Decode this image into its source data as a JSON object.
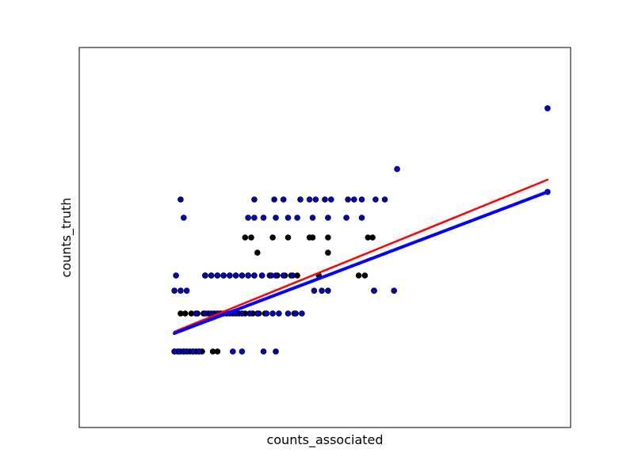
{
  "chart_data": {
    "type": "scatter",
    "title": "",
    "xlabel": "counts_associated",
    "ylabel": "counts_truth",
    "xlim": [
      -1,
      31
    ],
    "ylim": [
      0,
      25
    ],
    "xticks_visible": false,
    "yticks_visible": false,
    "grid": false,
    "colors": {
      "black_points": "#000000",
      "blue_points": "#0000cc",
      "red_line": "#ff0000",
      "blue_line": "#0000ff",
      "axes": "#000000",
      "background": "#ffffff"
    },
    "series": [
      {
        "marker": "black",
        "x": [
          5.2,
          5.4,
          5.6,
          5.8,
          6.0,
          6.2,
          6.4,
          6.6,
          6.8,
          7.0,
          7.7,
          8.0,
          5.6,
          5.9,
          6.3,
          6.7,
          7.1,
          7.4,
          7.8,
          8.2,
          8.6,
          9.0,
          9.4,
          9.8,
          10.3,
          10.7,
          11.1,
          13.0,
          7.2,
          7.6,
          8.0,
          8.4,
          8.8,
          9.2,
          9.6,
          10.0,
          10.4,
          10.9,
          11.4,
          11.9,
          12.4,
          12.8,
          13.2,
          14.6,
          17.6,
          18.2,
          17.2,
          9.8,
          10.2,
          11.6,
          12.6,
          14.0,
          14.2,
          15.2,
          10.6,
          15.2,
          17.8,
          18.1
        ],
        "y": [
          5,
          5,
          5,
          5,
          5,
          5,
          5,
          5,
          5,
          5,
          5,
          5,
          7.5,
          7.5,
          7.5,
          7.5,
          7.5,
          7.5,
          7.5,
          7.5,
          7.5,
          7.5,
          7.5,
          7.5,
          7.5,
          7.5,
          7.5,
          7.5,
          10,
          10,
          10,
          10,
          10,
          10,
          10,
          10,
          10,
          10,
          10,
          10,
          10,
          10,
          10,
          10,
          10,
          9,
          10,
          12.5,
          12.5,
          12.5,
          12.5,
          12.5,
          12.5,
          12.5,
          11.5,
          11.5,
          12.5,
          12.5
        ]
      },
      {
        "marker": "blue",
        "x": [
          5.2,
          5.5,
          5.8,
          6.0,
          6.4,
          6.8,
          5.3,
          6.6,
          7.2,
          7.6,
          8.0,
          8.4,
          8.8,
          9.2,
          9.6,
          10.1,
          10.6,
          11.2,
          11.6,
          12.0,
          12.6,
          13.1,
          13.5,
          5.2,
          5.6,
          6.0,
          7.2,
          7.6,
          8.0,
          8.4,
          8.8,
          9.2,
          9.6,
          10.0,
          10.4,
          10.9,
          11.5,
          11.8,
          12.3,
          12.9,
          14.3,
          14.8,
          15.2,
          18.2,
          19.5,
          10.0,
          10.4,
          11.0,
          11.8,
          12.6,
          13.2,
          14.2,
          15.2,
          16.4,
          17.4,
          10.4,
          11.7,
          12.3,
          13.4,
          14.0,
          14.4,
          15.0,
          15.4,
          16.5,
          16.9,
          17.4,
          18.3,
          18.9,
          18.2,
          5.6,
          5.8,
          9.0,
          9.6,
          11.0,
          11.8,
          29.5,
          19.7,
          29.5
        ],
        "y": [
          5,
          5,
          5,
          5,
          5,
          5,
          10,
          7.5,
          7.5,
          7.5,
          7.5,
          7.5,
          7.5,
          7.5,
          7.5,
          7.5,
          7.5,
          7.5,
          7.5,
          7.5,
          7.5,
          7.5,
          7.5,
          9,
          9,
          9,
          10,
          10,
          10,
          10,
          10,
          10,
          10,
          10,
          10,
          10,
          10,
          10,
          10,
          10,
          9,
          9,
          9,
          9,
          9,
          13.8,
          13.8,
          13.8,
          13.8,
          13.8,
          13.8,
          13.8,
          13.8,
          13.8,
          13.8,
          15,
          15,
          15,
          15,
          15,
          15,
          15,
          15,
          15,
          15,
          15,
          15,
          15,
          9,
          15,
          13.8,
          5,
          5,
          5,
          5,
          21,
          17,
          15.5
        ]
      }
    ],
    "fit_lines": [
      {
        "color": "red",
        "x": [
          5.2,
          29.5
        ],
        "y": [
          6.3,
          16.3
        ]
      },
      {
        "color": "blue",
        "x": [
          5.2,
          29.5
        ],
        "y": [
          6.2,
          15.5
        ]
      }
    ]
  }
}
